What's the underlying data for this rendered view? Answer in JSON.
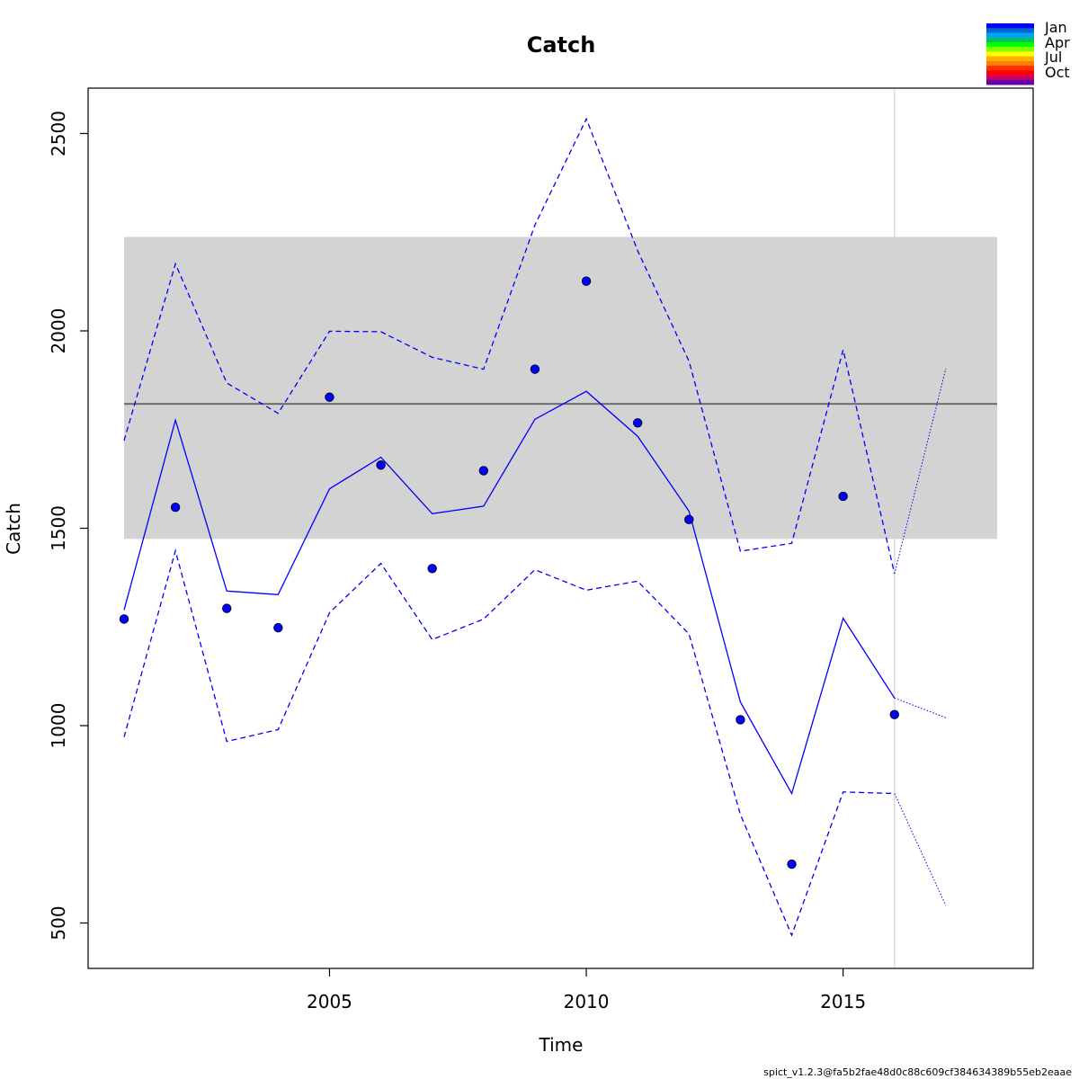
{
  "chart_data": {
    "type": "line",
    "title": "Catch",
    "xlabel": "Time",
    "ylabel": "Catch",
    "xlim": [
      2000.3,
      2018.7
    ],
    "ylim": [
      385,
      2615
    ],
    "x_ticks": [
      2005,
      2010,
      2015
    ],
    "y_ticks": [
      500,
      1000,
      1500,
      2000,
      2500
    ],
    "grid": false,
    "legend_position": "top-right",
    "legend_labels": [
      "Jan",
      "Apr",
      "Jul",
      "Oct"
    ],
    "legend_colors": [
      "#0000FF",
      "#0066CC",
      "#00A0FF",
      "#00C060",
      "#00FF00",
      "#80FF00",
      "#FFFF00",
      "#FFB000",
      "#FF8000",
      "#FF3000",
      "#FF0000",
      "#CC0066",
      "#6600AA"
    ],
    "observed": {
      "x": [
        2001,
        2002,
        2003,
        2004,
        2005,
        2006,
        2007,
        2008,
        2009,
        2010,
        2011,
        2012,
        2013,
        2014,
        2015,
        2016
      ],
      "y": [
        1270,
        1553,
        1297,
        1248,
        1832,
        1660,
        1398,
        1646,
        1903,
        2126,
        1767,
        1522,
        1015,
        649,
        1581,
        1028
      ]
    },
    "series": [
      {
        "role": "estimate",
        "style": "solid",
        "color": "#0000FF",
        "x": [
          2001,
          2002,
          2003,
          2004,
          2005,
          2006,
          2007,
          2008,
          2009,
          2010,
          2011,
          2012,
          2013,
          2014,
          2015,
          2016
        ],
        "y": [
          1293,
          1774,
          1341,
          1332,
          1600,
          1680,
          1537,
          1556,
          1776,
          1847,
          1733,
          1543,
          1060,
          828,
          1272,
          1070
        ]
      },
      {
        "role": "upper-ci",
        "style": "dashed",
        "color": "#0000FF",
        "x": [
          2001,
          2002,
          2003,
          2004,
          2005,
          2006,
          2007,
          2008,
          2009,
          2010,
          2011,
          2012,
          2013,
          2014,
          2015,
          2016
        ],
        "y": [
          1722,
          2170,
          1868,
          1791,
          1999,
          1998,
          1933,
          1903,
          2268,
          2537,
          2203,
          1923,
          1442,
          1462,
          1952,
          1385
        ]
      },
      {
        "role": "lower-ci",
        "style": "dashed",
        "color": "#0000FF",
        "x": [
          2001,
          2002,
          2003,
          2004,
          2005,
          2006,
          2007,
          2008,
          2009,
          2010,
          2011,
          2012,
          2013,
          2014,
          2015,
          2016
        ],
        "y": [
          971,
          1443,
          960,
          990,
          1286,
          1411,
          1218,
          1270,
          1395,
          1343,
          1366,
          1232,
          775,
          469,
          832,
          828
        ]
      },
      {
        "role": "forecast-estimate",
        "style": "dotted",
        "color": "#0000FF",
        "x": [
          2016,
          2017
        ],
        "y": [
          1070,
          1020
        ]
      },
      {
        "role": "forecast-upper",
        "style": "dotted",
        "color": "#0000FF",
        "x": [
          2016,
          2017
        ],
        "y": [
          1385,
          1905
        ]
      },
      {
        "role": "forecast-lower",
        "style": "dotted",
        "color": "#0000FF",
        "x": [
          2016,
          2017
        ],
        "y": [
          828,
          544
        ]
      }
    ],
    "msy_line": {
      "y": 1815,
      "x_range": [
        2001,
        2018
      ],
      "color": "#666666"
    },
    "msy_band": {
      "y_range": [
        1473,
        2238
      ],
      "x_range": [
        2001,
        2018
      ],
      "color": "#D3D3D3"
    },
    "vertical_line": {
      "x": 2016,
      "color": "#D3D3D3"
    }
  },
  "footer_text": "spict_v1.2.3@fa5b2fae48d0c88c609cf384634389b55eb2eaae"
}
